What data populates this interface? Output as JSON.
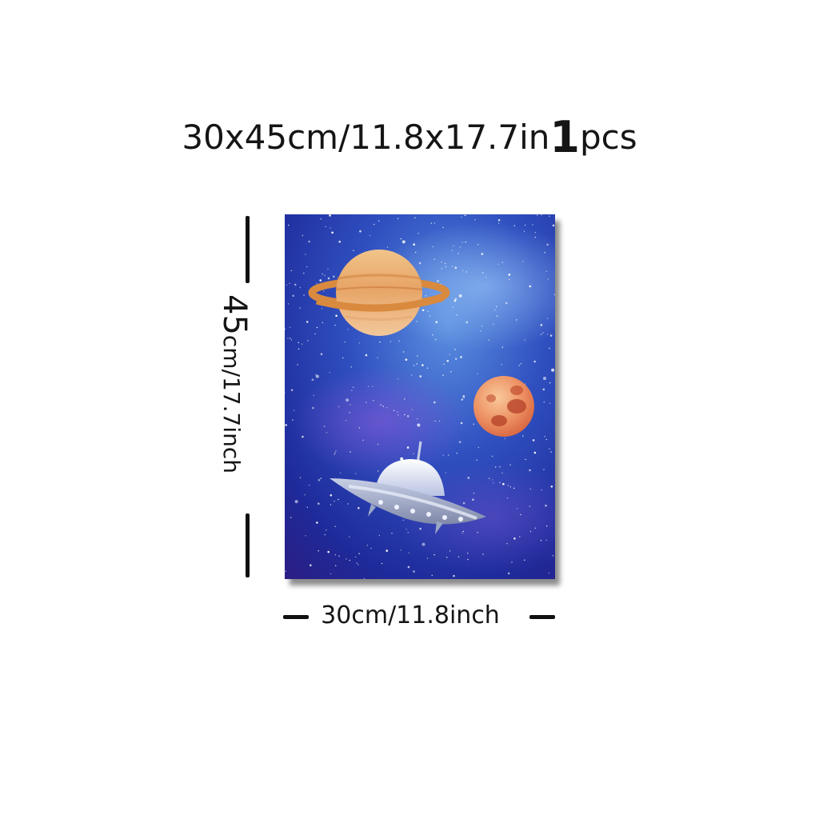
{
  "headline": {
    "size_text": "30x45cm/11.8x17.7in",
    "quantity": "1",
    "unit": "pcs"
  },
  "height_dimension": {
    "value": "45",
    "unit_text": "cm/17.7inch"
  },
  "width_dimension": {
    "text": "30cm/11.8inch"
  },
  "artwork": {
    "subject": [
      "ringed-planet",
      "red-planet",
      "flying-saucer",
      "starfield"
    ],
    "colors": {
      "space_dark": "#1e2a9a",
      "space_light": "#3d6fd6",
      "planet_orange": "#e8a868",
      "planet_red": "#e0704a",
      "saucer": "#9aa6c4"
    }
  }
}
